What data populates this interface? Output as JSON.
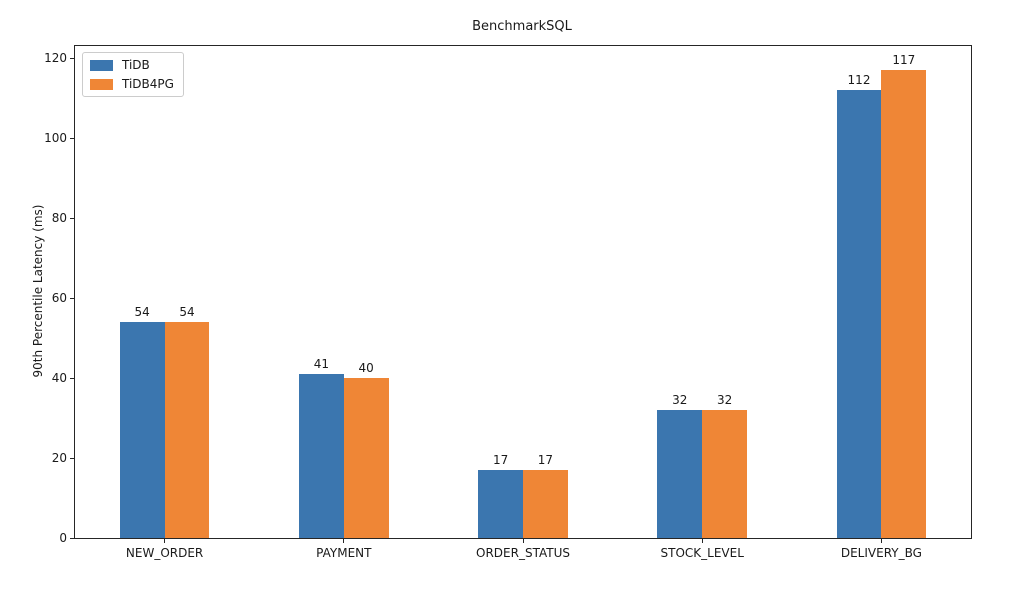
{
  "chart_data": {
    "type": "bar",
    "title": "BenchmarkSQL",
    "xlabel": "",
    "ylabel": "90th Percentile Latency (ms)",
    "categories": [
      "NEW_ORDER",
      "PAYMENT",
      "ORDER_STATUS",
      "STOCK_LEVEL",
      "DELIVERY_BG"
    ],
    "series": [
      {
        "name": "TiDB",
        "color": "#3b76af",
        "values": [
          54,
          41,
          17,
          32,
          112
        ]
      },
      {
        "name": "TiDB4PG",
        "color": "#ef8636",
        "values": [
          54,
          40,
          17,
          32,
          117
        ]
      }
    ],
    "yticks": [
      0,
      20,
      40,
      60,
      80,
      100,
      120
    ],
    "ylim": [
      0,
      123
    ],
    "bar_value_labels": true,
    "grid": false,
    "legend": {
      "position": "upper-left",
      "entries": [
        "TiDB",
        "TiDB4PG"
      ]
    },
    "axis_color": "#262626",
    "text_color": "#1a1a1a"
  }
}
